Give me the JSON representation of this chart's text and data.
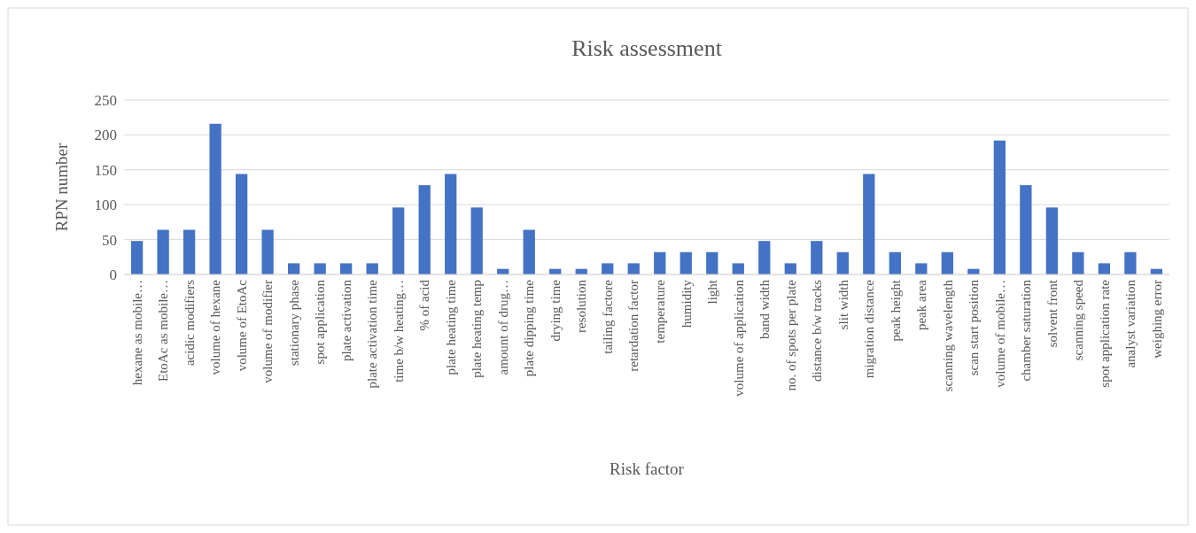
{
  "chart_data": {
    "type": "bar",
    "title": "Risk assessment",
    "xlabel": "Risk factor",
    "ylabel": "RPN  number",
    "categories": [
      "hexane as mobile…",
      "EtoAc as mobile…",
      "acidic modifiers",
      "volume of hexane",
      "volume of EtoAc",
      "volume of modifier",
      "stationary phase",
      "spot application",
      "plate activation",
      "plate activation time",
      "time b/w heating…",
      "% of acid",
      "plate heating time",
      "plate heating temp",
      "amount of drug…",
      "plate dipping time",
      "drying time",
      "resolution",
      "tailing factore",
      "retardation factor",
      "temperature",
      "humidity",
      "light",
      "volume of application",
      "band width",
      "no. of spots per plate",
      "distance b/w tracks",
      "slit width",
      "migration distance",
      "peak height",
      "peak area",
      "scanning wavelength",
      "scan start position",
      "volume of mobile…",
      "chamber saturation",
      "solvent front",
      "scanning speed",
      "spot application rate",
      "analyst variation",
      "weighing error"
    ],
    "values": [
      48,
      64,
      64,
      216,
      144,
      64,
      16,
      16,
      16,
      16,
      96,
      128,
      144,
      96,
      8,
      64,
      8,
      8,
      16,
      16,
      32,
      32,
      32,
      16,
      48,
      16,
      48,
      32,
      144,
      32,
      16,
      32,
      8,
      192,
      128,
      96,
      32,
      16,
      32,
      8
    ],
    "color": "#4472c4",
    "ylim": [
      0,
      250
    ],
    "yticks": [
      0,
      50,
      100,
      150,
      200,
      250
    ],
    "grid": "y"
  }
}
